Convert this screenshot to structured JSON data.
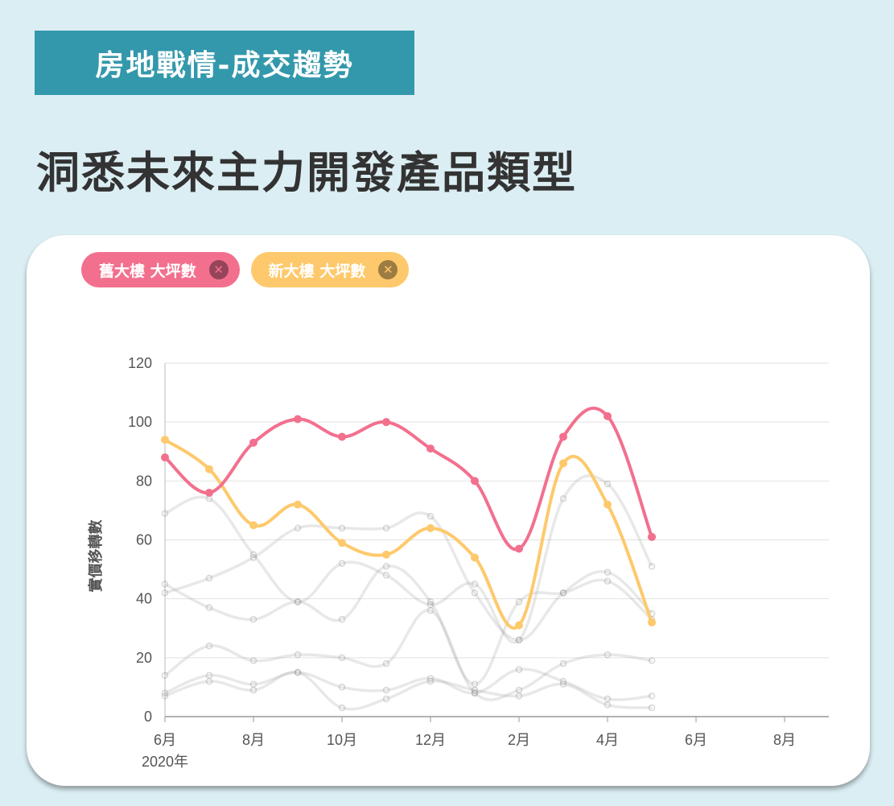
{
  "header": {
    "section_tag": "房地戰情-成交趨勢",
    "title": "洞悉未來主力開發產品類型"
  },
  "legend": [
    {
      "label": "舊大樓 大坪數",
      "color": "#f2708e",
      "close_icon": "close-icon"
    },
    {
      "label": "新大樓 大坪數",
      "color": "#fec96c",
      "close_icon": "close-icon"
    }
  ],
  "chart_data": {
    "type": "line",
    "ylabel": "實價移轉數",
    "xlabel": "",
    "ylim": [
      0,
      120
    ],
    "y_ticks": [
      0,
      20,
      40,
      60,
      80,
      100,
      120
    ],
    "x_ticks": [
      "6月",
      "8月",
      "10月",
      "12月",
      "2月",
      "4月",
      "6月",
      "8月"
    ],
    "x_year_label": "2020年",
    "grid": true,
    "legend_position": "top-left",
    "months_axis_span": 15,
    "series": [
      {
        "name": "舊大樓 大坪數",
        "color": "#f2708e",
        "values": [
          88,
          76,
          93,
          101,
          95,
          100,
          91,
          80,
          57,
          95,
          102,
          61
        ]
      },
      {
        "name": "新大樓 大坪數",
        "color": "#fec96c",
        "values": [
          94,
          84,
          65,
          72,
          59,
          55,
          64,
          54,
          31,
          86,
          72,
          32
        ]
      }
    ],
    "background_series": [
      {
        "values": [
          69,
          74,
          55,
          39,
          52,
          48,
          38,
          45,
          26,
          74,
          79,
          51
        ]
      },
      {
        "values": [
          45,
          37,
          33,
          39,
          33,
          51,
          39,
          11,
          39,
          42,
          46,
          33
        ]
      },
      {
        "values": [
          42,
          47,
          54,
          64,
          64,
          64,
          68,
          42,
          26,
          42,
          49,
          35
        ]
      },
      {
        "values": [
          14,
          24,
          19,
          21,
          20,
          18,
          36,
          8,
          9,
          18,
          21,
          19
        ]
      },
      {
        "values": [
          8,
          14,
          11,
          15,
          10,
          9,
          13,
          8,
          16,
          12,
          6,
          7
        ]
      },
      {
        "values": [
          7,
          12,
          9,
          15,
          3,
          6,
          12,
          9,
          7,
          11,
          4,
          3
        ]
      }
    ]
  }
}
